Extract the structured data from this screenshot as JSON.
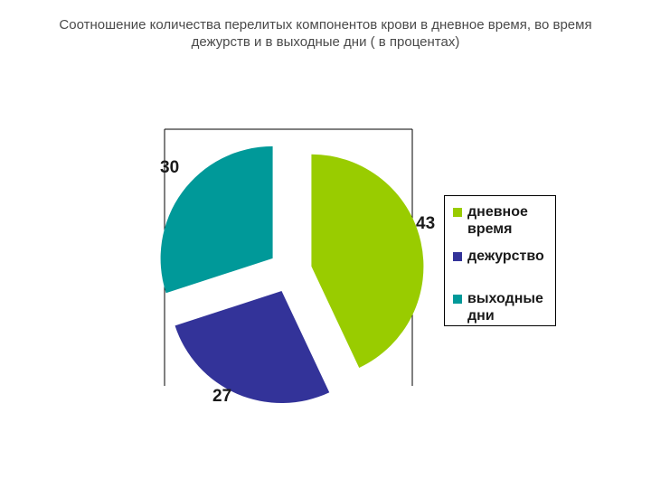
{
  "chart_data": {
    "type": "pie",
    "title_lines": [
      "Соотношение количества перелитых компонентов крови в дневное время, во время",
      "дежурств и в выходные дни ( в процентах)"
    ],
    "categories": [
      "дневное время",
      "дежурство",
      "выходные дни"
    ],
    "values": [
      43,
      27,
      30
    ],
    "data_labels": [
      "43",
      "27",
      "30"
    ],
    "legend_labels": [
      [
        "дневное",
        "время"
      ],
      [
        "дежурство"
      ],
      [
        "выходные",
        "дни"
      ]
    ],
    "colors": [
      "#99CC00",
      "#333399",
      "#009999"
    ],
    "exploded": true,
    "legend_position": "right"
  }
}
